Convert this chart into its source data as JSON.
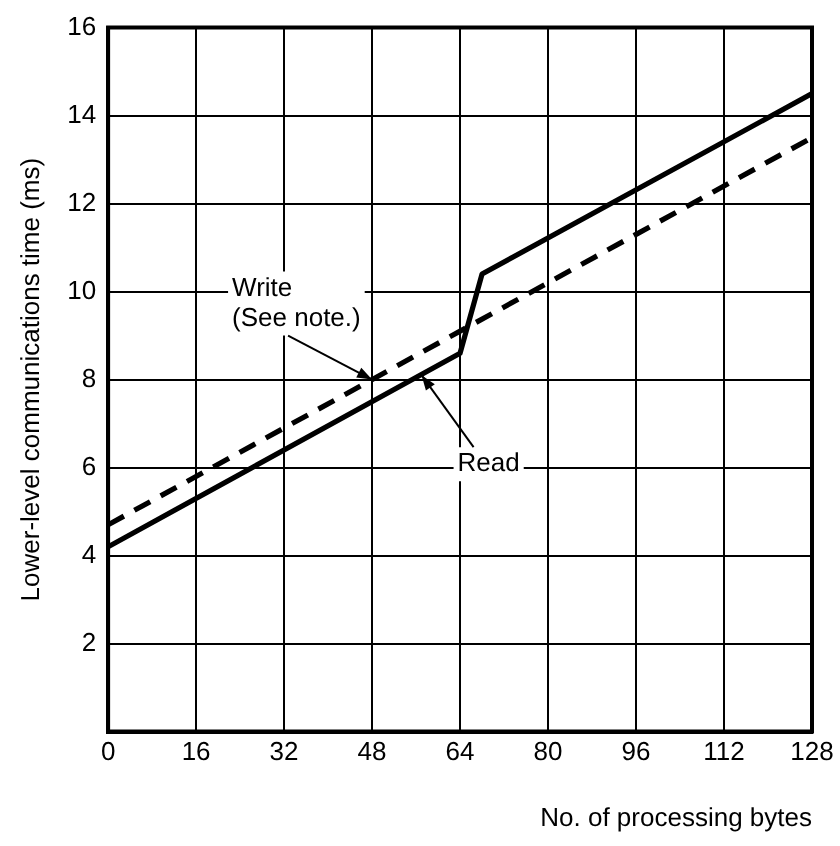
{
  "chart_data": {
    "type": "line",
    "xlabel": "No. of processing bytes",
    "ylabel": "Lower-level communications time (ms)",
    "xlim": [
      0,
      128
    ],
    "xticks": [
      0,
      16,
      32,
      48,
      64,
      80,
      96,
      112,
      128
    ],
    "ylim": [
      0,
      16
    ],
    "yticks": [
      2,
      4,
      6,
      8,
      10,
      12,
      14,
      16
    ],
    "grid": true,
    "legend": false,
    "marker": "none",
    "series": [
      {
        "color": "#000000",
        "line_style": "dashed",
        "x": [
          0,
          128
        ],
        "values": [
          4.7,
          13.5
        ]
      },
      {
        "color": "#000000",
        "line_style": "solid",
        "x": [
          0,
          64,
          68,
          128
        ],
        "values": [
          4.2,
          8.6,
          10.4,
          14.5
        ]
      }
    ],
    "annotations": [
      {
        "text": "Write\n(See note.)",
        "x": 48,
        "y": 8.0
      },
      {
        "text": "Read",
        "x": 57,
        "y": 8.1
      }
    ]
  }
}
